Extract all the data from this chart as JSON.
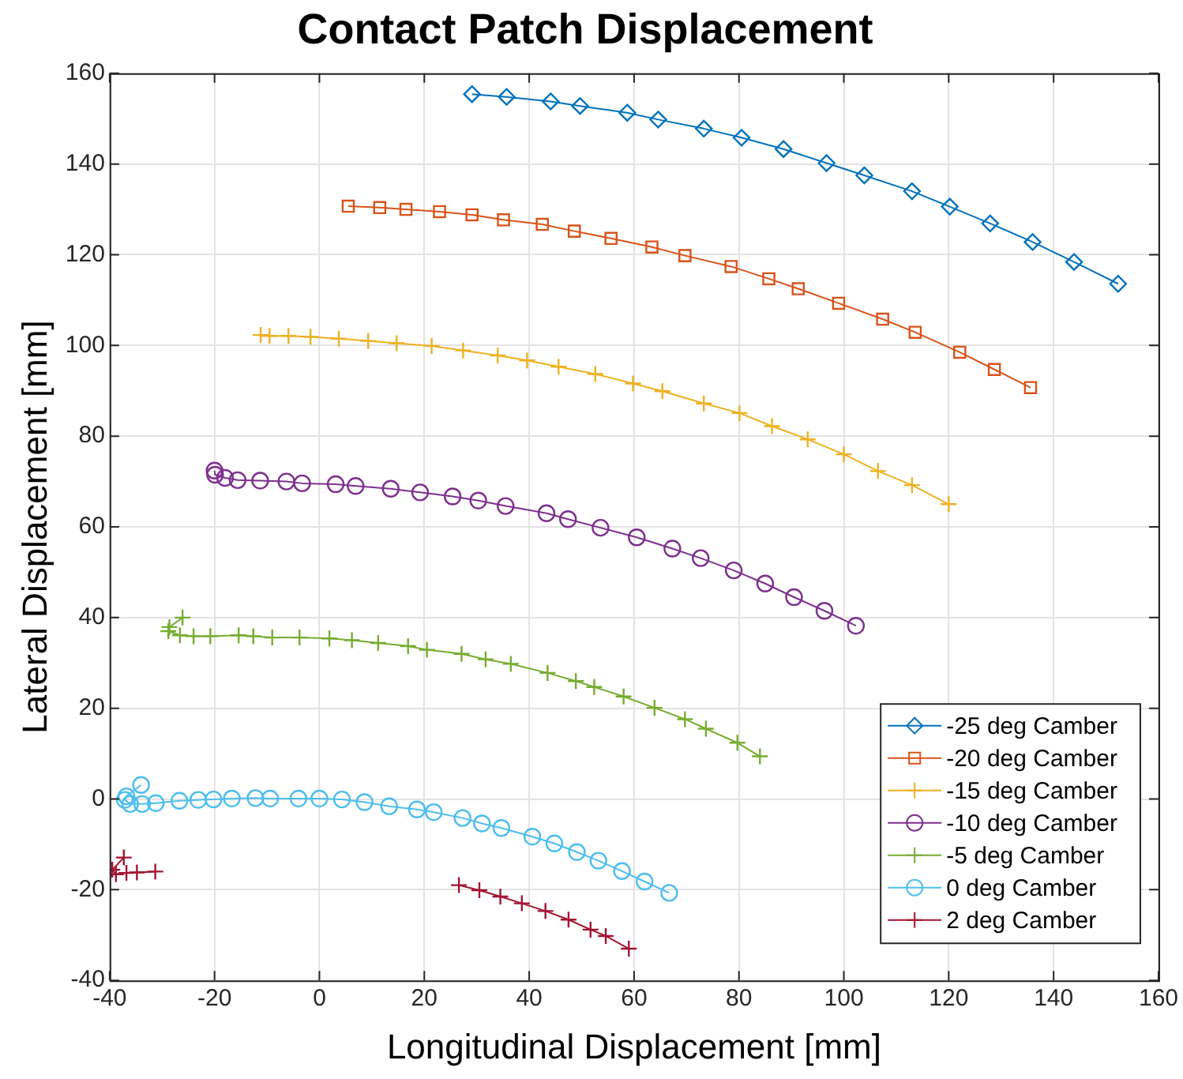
{
  "chart_data": {
    "type": "line",
    "title": "Contact Patch Displacement",
    "xlabel": "Longitudinal Displacement [mm]",
    "ylabel": "Lateral Displacement [mm]",
    "xlim": [
      -40,
      160
    ],
    "xticks": [
      -40,
      -20,
      0,
      20,
      40,
      60,
      80,
      100,
      120,
      140,
      160
    ],
    "ylim": [
      -40,
      160
    ],
    "yticks": [
      -40,
      -20,
      0,
      20,
      40,
      60,
      80,
      100,
      120,
      140,
      160
    ],
    "grid": true,
    "legend": "bottom right",
    "line_style": "solid",
    "series": [
      {
        "name": "-25 deg Camber",
        "color": "#0072bd",
        "marker": "diamond",
        "x": [
          29.1,
          35.7,
          44.1,
          49.7,
          58.7,
          64.6,
          73.3,
          80.5,
          88.5,
          96.7,
          103.9,
          113.0,
          120.2,
          127.9,
          136.0,
          143.9,
          152.3
        ],
        "values": [
          155.4,
          154.8,
          153.8,
          152.8,
          151.3,
          149.8,
          147.8,
          145.8,
          143.3,
          140.2,
          137.5,
          134.0,
          130.6,
          126.9,
          122.8,
          118.4,
          113.6
        ]
      },
      {
        "name": "-20 deg Camber",
        "color": "#d95319",
        "marker": "square",
        "x": [
          5.5,
          11.5,
          16.5,
          22.9,
          29.1,
          35.1,
          42.5,
          48.6,
          55.6,
          63.4,
          69.7,
          78.5,
          85.7,
          91.3,
          99.0,
          107.4,
          113.6,
          122.1,
          128.7,
          135.6
        ],
        "values": [
          130.7,
          130.4,
          130.0,
          129.5,
          128.8,
          127.7,
          126.7,
          125.2,
          123.6,
          121.7,
          119.8,
          117.4,
          114.7,
          112.5,
          109.3,
          105.8,
          102.9,
          98.5,
          94.7,
          90.7
        ]
      },
      {
        "name": "-15 deg Camber",
        "color": "#edb120",
        "marker": "cross",
        "x": [
          -11.2,
          -9.5,
          -5.9,
          -1.7,
          3.7,
          9.3,
          14.7,
          21.4,
          27.4,
          34.0,
          39.6,
          45.6,
          52.6,
          59.8,
          65.4,
          73.3,
          80.1,
          86.3,
          93.1,
          100.0,
          106.5,
          113.0,
          120.0
        ],
        "values": [
          102.3,
          102.1,
          102.1,
          101.9,
          101.5,
          101.0,
          100.5,
          99.9,
          98.9,
          97.8,
          96.7,
          95.3,
          93.7,
          91.6,
          89.9,
          87.2,
          85.1,
          82.2,
          79.3,
          76.0,
          72.3,
          69.2,
          65.0
        ]
      },
      {
        "name": "-10 deg Camber",
        "color": "#7e2f8e",
        "marker": "circle",
        "x": [
          -20.0,
          -19.9,
          -18.0,
          -15.6,
          -11.3,
          -6.3,
          -3.3,
          3.1,
          6.9,
          13.6,
          19.2,
          25.4,
          30.3,
          35.5,
          43.3,
          47.4,
          53.6,
          60.5,
          67.3,
          72.7,
          79.0,
          85.0,
          90.5,
          96.3,
          102.3
        ],
        "values": [
          72.4,
          71.5,
          70.8,
          70.3,
          70.2,
          70.0,
          69.6,
          69.4,
          69.0,
          68.4,
          67.6,
          66.7,
          65.8,
          64.6,
          63.0,
          61.7,
          59.8,
          57.7,
          55.2,
          53.1,
          50.4,
          47.5,
          44.5,
          41.5,
          38.2
        ]
      },
      {
        "name": "-5 deg Camber",
        "color": "#77ac30",
        "marker": "cross",
        "x": [
          -26.1,
          -28.6,
          -28.8,
          -26.6,
          -24.0,
          -20.8,
          -15.4,
          -12.6,
          -9.0,
          -3.8,
          1.9,
          6.2,
          11.2,
          16.9,
          20.5,
          27.1,
          31.7,
          36.5,
          43.5,
          48.9,
          52.4,
          58.0,
          63.9,
          69.7,
          73.7,
          79.7,
          84.0
        ],
        "values": [
          40.0,
          37.9,
          37.0,
          36.1,
          35.9,
          35.9,
          36.1,
          35.9,
          35.6,
          35.6,
          35.4,
          35.0,
          34.4,
          33.7,
          32.9,
          32.0,
          30.8,
          29.8,
          27.8,
          26.0,
          24.7,
          22.6,
          20.1,
          17.6,
          15.5,
          12.4,
          9.4
        ]
      },
      {
        "name": "0 deg Camber",
        "color": "#4dbeee",
        "marker": "circle",
        "x": [
          -34.0,
          -36.8,
          -37.1,
          -36.1,
          -33.8,
          -31.2,
          -26.7,
          -23.1,
          -20.2,
          -16.7,
          -12.2,
          -9.4,
          -4.0,
          0.0,
          4.3,
          8.6,
          13.3,
          18.6,
          21.8,
          27.3,
          31.0,
          34.7,
          40.6,
          44.8,
          49.1,
          53.2,
          57.7,
          62.0,
          66.7
        ],
        "values": [
          3.1,
          0.6,
          -0.2,
          -1.1,
          -1.1,
          -0.9,
          -0.4,
          -0.2,
          -0.1,
          0.1,
          0.2,
          0.1,
          0.1,
          0.1,
          -0.1,
          -0.7,
          -1.6,
          -2.3,
          -2.9,
          -4.2,
          -5.4,
          -6.4,
          -8.3,
          -9.8,
          -11.7,
          -13.6,
          -15.9,
          -18.2,
          -20.7
        ]
      },
      {
        "name": "2 deg Camber",
        "color": "#a2142f",
        "marker": "cross",
        "x": [
          -37.3,
          -39.5,
          -38.8,
          -36.8,
          -34.8,
          -31.3,
          null,
          26.6,
          30.5,
          34.5,
          38.6,
          43.1,
          47.5,
          51.7,
          54.6,
          59.0
        ],
        "values": [
          -12.9,
          -15.6,
          -16.6,
          -16.3,
          -16.2,
          -16.0,
          null,
          -19.0,
          -20.1,
          -21.5,
          -23.0,
          -24.7,
          -26.6,
          -28.8,
          -30.2,
          -33.0
        ]
      }
    ]
  }
}
